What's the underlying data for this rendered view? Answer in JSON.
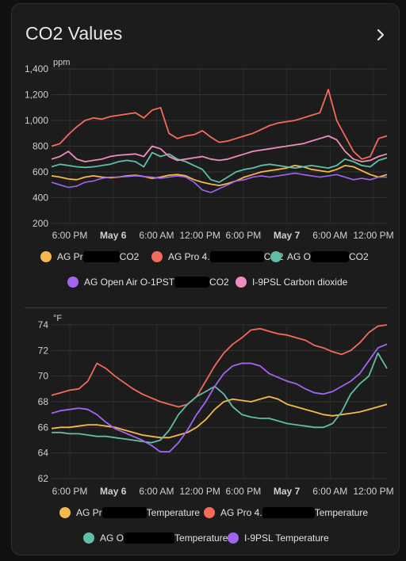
{
  "card": {
    "title": "CO2 Values"
  },
  "colors": {
    "orange": "#f4b84d",
    "red": "#f36b5b",
    "teal": "#5fbfa6",
    "purple": "#a165f0",
    "pink": "#f08cc0"
  },
  "chart_data": [
    {
      "type": "line",
      "ylabel": "ppm",
      "ylim": [
        200,
        1400
      ],
      "yticks": [
        "1,400",
        "1,200",
        "1,000",
        "800",
        "600",
        "400",
        "200"
      ],
      "xticks": [
        "6:00 PM",
        "May 6",
        "6:00 AM",
        "12:00 PM",
        "6:00 PM",
        "May 7",
        "6:00 AM",
        "12:00 PM"
      ],
      "grid": true,
      "legend_position": "bottom",
      "legend": [
        {
          "prefix": "AG Pr",
          "suffix": "CO2"
        },
        {
          "prefix": "AG Pro 4.",
          "suffix": "CO2"
        },
        {
          "prefix": "AG O",
          "suffix": "CO2"
        },
        {
          "prefix": "AG Open Air O-1PST",
          "suffix": "CO2"
        },
        {
          "prefix": "I-9PSL Carbon dioxide",
          "suffix": ""
        }
      ],
      "series": [
        {
          "color": "orange",
          "values": [
            570,
            560,
            545,
            540,
            560,
            570,
            560,
            555,
            560,
            570,
            575,
            565,
            550,
            560,
            575,
            580,
            570,
            540,
            520,
            505,
            495,
            510,
            530,
            560,
            580,
            600,
            610,
            620,
            630,
            650,
            640,
            620,
            610,
            600,
            620,
            650,
            640,
            610,
            580,
            560,
            580
          ]
        },
        {
          "color": "red",
          "values": [
            800,
            820,
            890,
            950,
            1000,
            1020,
            1010,
            1030,
            1040,
            1050,
            1060,
            1020,
            1080,
            1100,
            900,
            860,
            880,
            890,
            920,
            870,
            830,
            840,
            860,
            880,
            900,
            930,
            960,
            980,
            990,
            1000,
            1020,
            1040,
            1060,
            1240,
            1000,
            880,
            760,
            700,
            720,
            860,
            880
          ]
        },
        {
          "color": "teal",
          "values": [
            640,
            660,
            650,
            640,
            635,
            640,
            650,
            660,
            680,
            690,
            680,
            640,
            750,
            720,
            740,
            700,
            680,
            650,
            620,
            540,
            520,
            560,
            600,
            620,
            630,
            650,
            660,
            650,
            640,
            630,
            640,
            650,
            640,
            630,
            650,
            700,
            680,
            650,
            640,
            690,
            710
          ]
        },
        {
          "color": "purple",
          "values": [
            520,
            500,
            480,
            490,
            520,
            530,
            550,
            560,
            560,
            565,
            570,
            565,
            560,
            550,
            560,
            570,
            560,
            520,
            460,
            440,
            470,
            500,
            530,
            540,
            560,
            570,
            560,
            570,
            580,
            590,
            580,
            570,
            560,
            570,
            580,
            560,
            540,
            550,
            540,
            560,
            560
          ]
        },
        {
          "color": "pink",
          "values": [
            700,
            720,
            760,
            700,
            680,
            690,
            700,
            720,
            730,
            735,
            740,
            720,
            800,
            780,
            720,
            690,
            700,
            710,
            720,
            700,
            690,
            700,
            720,
            740,
            760,
            770,
            780,
            790,
            800,
            810,
            820,
            840,
            860,
            880,
            850,
            760,
            700,
            680,
            690,
            720,
            740
          ]
        }
      ]
    },
    {
      "type": "line",
      "ylabel": "°F",
      "ylim": [
        62,
        74
      ],
      "yticks": [
        "74",
        "72",
        "70",
        "68",
        "66",
        "64",
        "62"
      ],
      "xticks": [
        "6:00 PM",
        "May 6",
        "6:00 AM",
        "12:00 PM",
        "6:00 PM",
        "May 7",
        "6:00 AM",
        "12:00 PM"
      ],
      "grid": true,
      "legend_position": "bottom",
      "legend": [
        {
          "prefix": "AG Pr",
          "suffix": "Temperature"
        },
        {
          "prefix": "AG Pro 4.",
          "suffix": "Temperature"
        },
        {
          "prefix": "AG O",
          "suffix": "Temperature"
        },
        {
          "prefix": "I-9PSL Temperature",
          "suffix": ""
        }
      ],
      "series": [
        {
          "color": "orange",
          "values": [
            65.9,
            66.0,
            66.0,
            66.1,
            66.2,
            66.2,
            66.1,
            66.0,
            65.8,
            65.6,
            65.4,
            65.3,
            65.2,
            65.2,
            65.4,
            65.6,
            66.0,
            66.6,
            67.4,
            68.0,
            68.2,
            68.1,
            68.0,
            68.2,
            68.4,
            68.2,
            67.8,
            67.6,
            67.4,
            67.2,
            67.0,
            66.9,
            67.0,
            67.1,
            67.2,
            67.4,
            67.6,
            67.8
          ]
        },
        {
          "color": "red",
          "values": [
            68.5,
            68.7,
            68.9,
            69.0,
            69.6,
            71.0,
            70.6,
            70.0,
            69.5,
            69.0,
            68.6,
            68.3,
            68.0,
            67.8,
            67.6,
            67.8,
            68.4,
            69.6,
            70.8,
            71.8,
            72.5,
            73.0,
            73.6,
            73.7,
            73.5,
            73.3,
            73.2,
            73.0,
            72.8,
            72.4,
            72.2,
            71.9,
            71.7,
            72.0,
            72.6,
            73.4,
            73.9,
            74.0
          ]
        },
        {
          "color": "teal",
          "values": [
            65.6,
            65.6,
            65.5,
            65.5,
            65.4,
            65.3,
            65.3,
            65.2,
            65.1,
            65.0,
            64.9,
            64.8,
            65.0,
            65.8,
            67.0,
            67.8,
            68.4,
            68.8,
            69.2,
            68.6,
            67.6,
            67.0,
            66.8,
            66.7,
            66.7,
            66.5,
            66.3,
            66.2,
            66.1,
            66.0,
            66.0,
            66.3,
            67.2,
            68.6,
            69.4,
            70.0,
            71.8,
            70.6
          ]
        },
        {
          "color": "purple",
          "values": [
            67.1,
            67.3,
            67.4,
            67.5,
            67.4,
            67.0,
            66.4,
            65.9,
            65.6,
            65.3,
            65.0,
            64.6,
            64.1,
            64.1,
            64.8,
            65.8,
            67.0,
            68.0,
            69.2,
            70.2,
            70.8,
            71.0,
            71.0,
            70.8,
            70.2,
            69.9,
            69.6,
            69.4,
            69.0,
            68.7,
            68.6,
            68.8,
            69.2,
            69.6,
            70.2,
            71.2,
            72.2,
            72.5
          ]
        }
      ]
    }
  ]
}
